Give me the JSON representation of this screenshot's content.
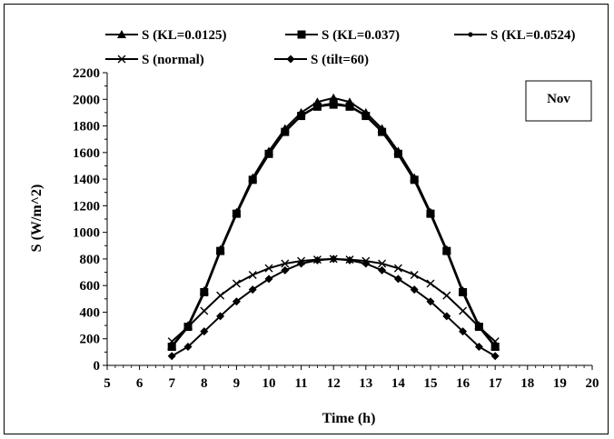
{
  "chart_data": {
    "type": "line",
    "xlabel": "Time (h)",
    "ylabel": "S (W/m^2)",
    "xlim": [
      5,
      20
    ],
    "ylim": [
      0,
      2200
    ],
    "xticks": [
      5,
      6,
      7,
      8,
      9,
      10,
      11,
      12,
      13,
      14,
      15,
      16,
      17,
      18,
      19,
      20
    ],
    "yticks": [
      0,
      200,
      400,
      600,
      800,
      1000,
      1200,
      1400,
      1600,
      1800,
      2000,
      2200
    ],
    "grid": false,
    "legend_position": "top",
    "annotation": "Nov",
    "x": [
      7,
      7.5,
      8,
      8.5,
      9,
      9.5,
      10,
      10.5,
      11,
      11.5,
      12,
      12.5,
      13,
      13.5,
      14,
      14.5,
      15,
      15.5,
      16,
      16.5,
      17
    ],
    "series": [
      {
        "name": "S (KL=0.0125)",
        "marker": "triangle",
        "values": [
          145,
          300,
          560,
          870,
          1150,
          1410,
          1610,
          1780,
          1900,
          1980,
          2010,
          1980,
          1900,
          1780,
          1610,
          1410,
          1150,
          870,
          560,
          300,
          145
        ]
      },
      {
        "name": "S (KL=0.037)",
        "marker": "square",
        "values": [
          140,
          290,
          550,
          860,
          1140,
          1395,
          1590,
          1755,
          1875,
          1945,
          1960,
          1945,
          1875,
          1755,
          1590,
          1395,
          1140,
          860,
          550,
          290,
          140
        ]
      },
      {
        "name": "S (KL=0.0524)",
        "marker": "dot",
        "values": [
          138,
          288,
          545,
          855,
          1135,
          1390,
          1585,
          1760,
          1880,
          1950,
          1970,
          1950,
          1880,
          1760,
          1585,
          1390,
          1135,
          855,
          545,
          288,
          138
        ]
      },
      {
        "name": "S (normal)",
        "marker": "x",
        "values": [
          180,
          290,
          410,
          525,
          615,
          680,
          730,
          765,
          785,
          795,
          800,
          795,
          785,
          765,
          730,
          680,
          615,
          525,
          410,
          290,
          180
        ]
      },
      {
        "name": "S (tilt=60)",
        "marker": "diamond",
        "values": [
          70,
          140,
          255,
          370,
          480,
          570,
          650,
          715,
          765,
          790,
          800,
          790,
          765,
          715,
          650,
          570,
          480,
          370,
          255,
          140,
          70
        ]
      }
    ]
  }
}
